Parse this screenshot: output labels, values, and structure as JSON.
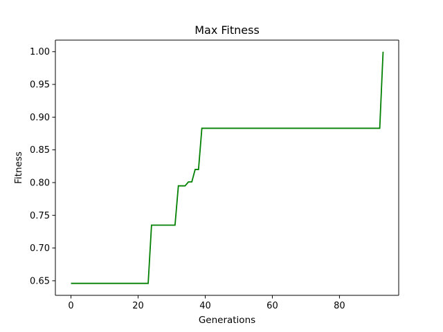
{
  "chart_data": {
    "type": "line",
    "title": "Max Fitness",
    "xlabel": "Generations",
    "ylabel": "Fitness",
    "xlim": [
      -4.65,
      97.65
    ],
    "ylim": [
      0.6277,
      1.0177
    ],
    "xticks": [
      0,
      20,
      40,
      60,
      80
    ],
    "xtick_labels": [
      "0",
      "20",
      "40",
      "60",
      "80"
    ],
    "yticks": [
      0.65,
      0.7,
      0.75,
      0.8,
      0.85,
      0.9,
      0.95,
      1.0
    ],
    "ytick_labels": [
      "0.65",
      "0.70",
      "0.75",
      "0.80",
      "0.85",
      "0.90",
      "0.95",
      "1.00"
    ],
    "grid": false,
    "legend": "none",
    "series": [
      {
        "color": "#008000",
        "x": [
          0,
          23,
          24,
          31,
          32,
          34,
          35,
          36,
          37,
          38,
          39,
          92,
          93
        ],
        "y": [
          0.646,
          0.646,
          0.735,
          0.735,
          0.795,
          0.795,
          0.801,
          0.801,
          0.82,
          0.82,
          0.883,
          0.883,
          1.0
        ]
      }
    ]
  }
}
